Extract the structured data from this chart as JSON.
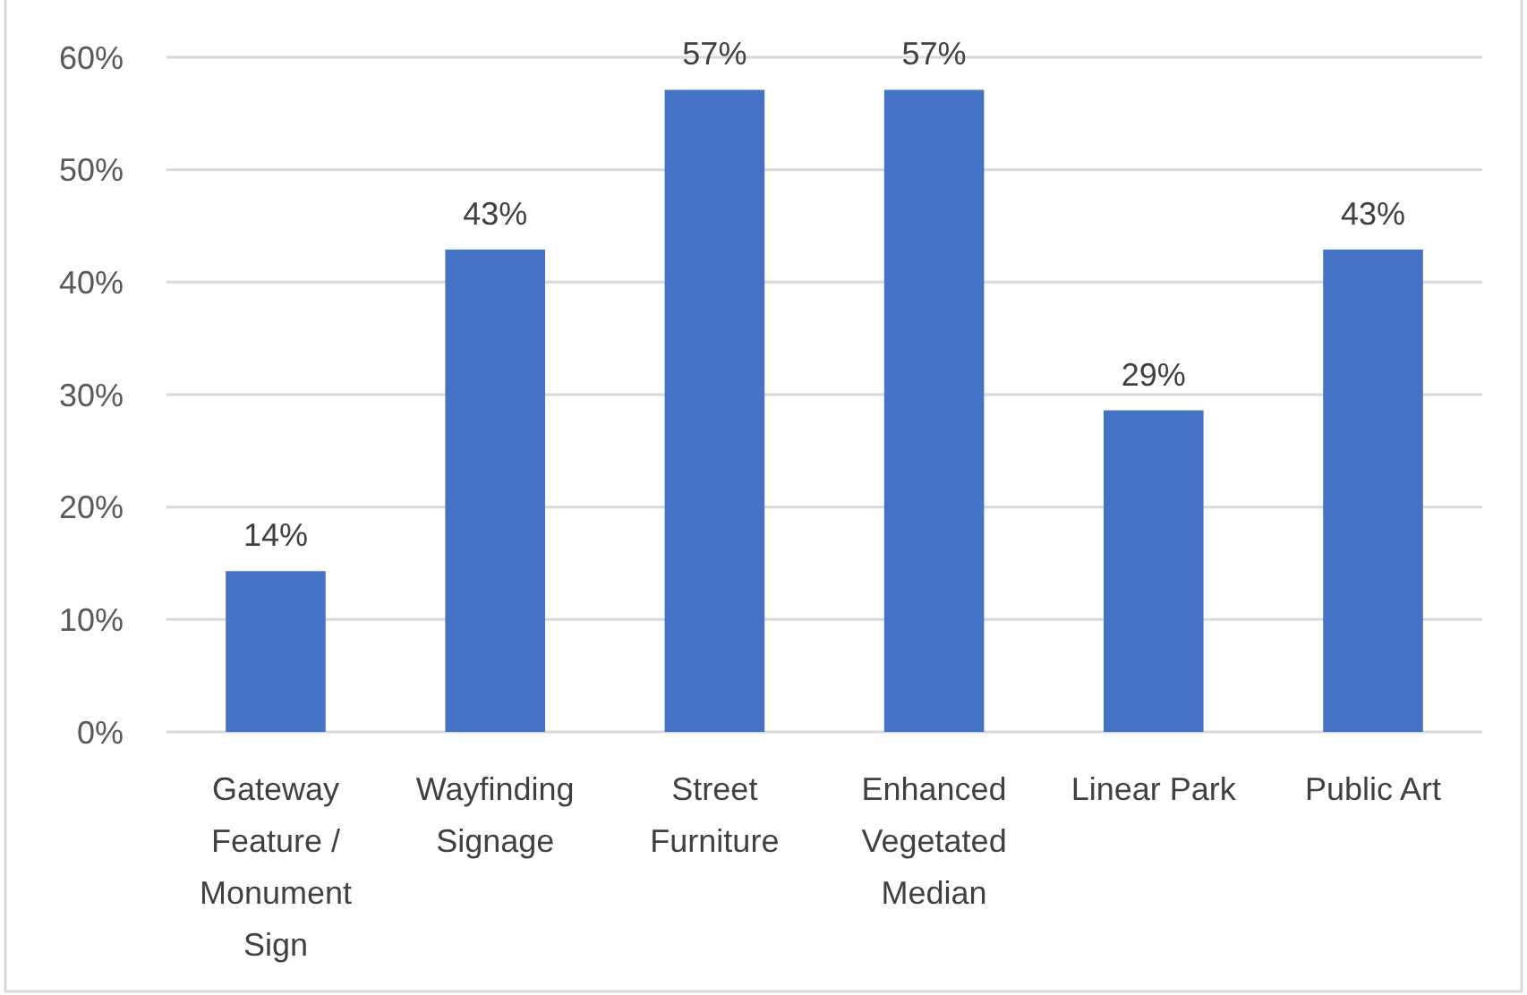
{
  "chart_data": {
    "type": "bar",
    "categories": [
      "Gateway Feature / Monument Sign",
      "Wayfinding Signage",
      "Street Furniture",
      "Enhanced Vegetated Median",
      "Linear Park",
      "Public Art"
    ],
    "values": [
      14.3,
      42.9,
      57.1,
      57.1,
      28.6,
      42.9
    ],
    "value_labels": [
      "14%",
      "43%",
      "57%",
      "57%",
      "29%",
      "43%"
    ],
    "color": "#4472c4",
    "ylim": [
      0,
      60
    ],
    "yticks": [
      {
        "value": 0,
        "label": "0%"
      },
      {
        "value": 10,
        "label": "10%"
      },
      {
        "value": 20,
        "label": "20%"
      },
      {
        "value": 30,
        "label": "30%"
      },
      {
        "value": 40,
        "label": "40%"
      },
      {
        "value": 50,
        "label": "50%"
      },
      {
        "value": 60,
        "label": "60%"
      }
    ],
    "grid": "y"
  }
}
